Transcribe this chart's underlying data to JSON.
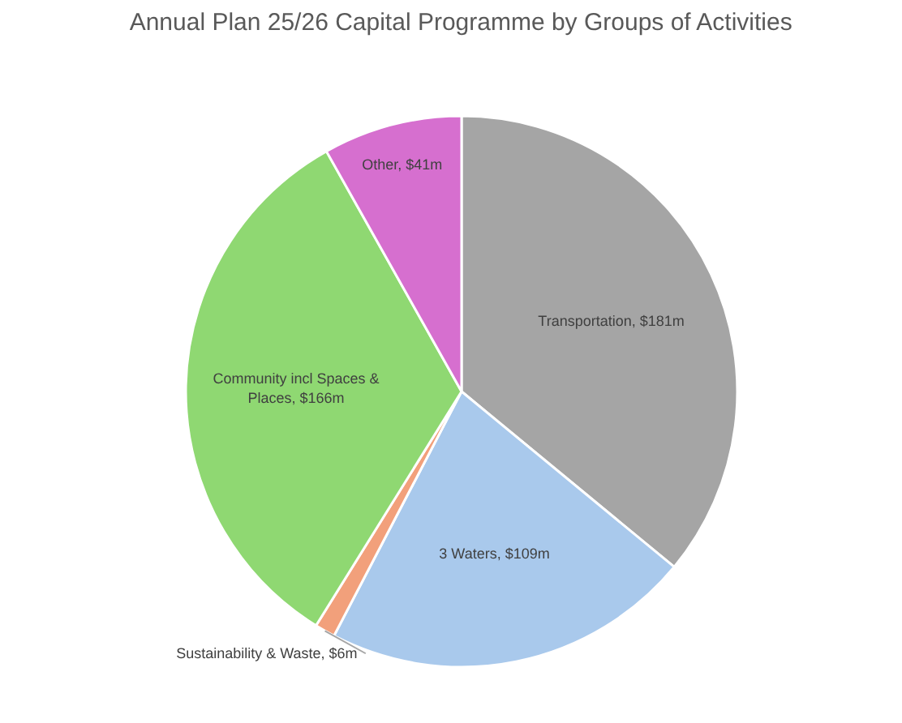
{
  "chart_data": {
    "type": "pie",
    "title": "Annual Plan 25/26 Capital Programme by Groups of Activities",
    "categories": [
      "Transportation",
      "3 Waters",
      "Sustainability & Waste",
      "Community incl Spaces & Places",
      "Other"
    ],
    "values": [
      181,
      109,
      6,
      166,
      41
    ],
    "colors": [
      "#a5a5a5",
      "#a9c9ec",
      "#f2a07b",
      "#8fd872",
      "#d66fcf"
    ],
    "value_labels": [
      "$181m",
      "$109m",
      "$6m",
      "$166m",
      "$41m"
    ]
  }
}
